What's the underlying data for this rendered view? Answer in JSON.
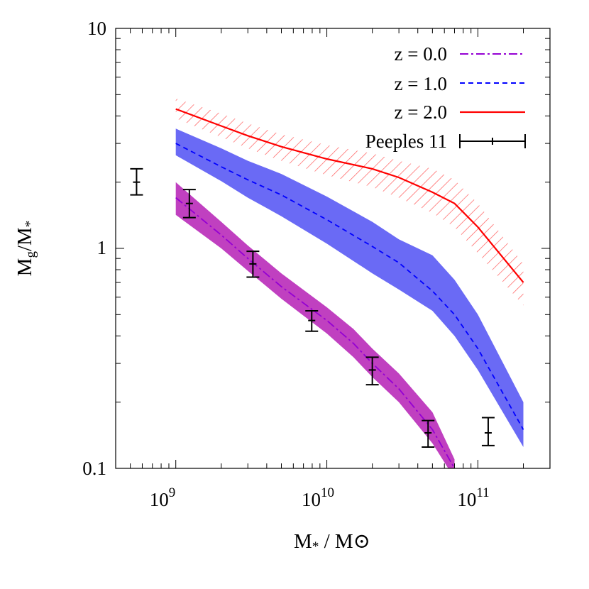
{
  "chart_data": {
    "type": "line",
    "xscale": "log",
    "yscale": "log",
    "xlim": [
      400000000,
      300000000000
    ],
    "ylim": [
      0.1,
      10
    ],
    "xlabel": {
      "main": "M",
      "sub": "*",
      "rest": " / M",
      "symbol": "⊙"
    },
    "ylabel": {
      "num": "M",
      "num_sub": "g",
      "slash": "/M",
      "den_sub": "*"
    },
    "x_ticks": [
      {
        "base": "10",
        "exp": "9",
        "value": 1000000000
      },
      {
        "base": "10",
        "exp": "10",
        "value": 10000000000
      },
      {
        "base": "10",
        "exp": "11",
        "value": 100000000000
      }
    ],
    "y_ticks": [
      {
        "label": "0.1",
        "value": 0.1
      },
      {
        "label": "1",
        "value": 1
      },
      {
        "label": "10",
        "value": 10
      }
    ],
    "series": [
      {
        "name": "z = 0.0",
        "color": "#9400d3",
        "band_color": "#c040c0",
        "style": "dash-dot",
        "band": "solid",
        "points": [
          [
            1000000000,
            1.7
          ],
          [
            2000000000,
            1.15
          ],
          [
            3000000000,
            0.9
          ],
          [
            5000000000,
            0.67
          ],
          [
            10000000000,
            0.47
          ],
          [
            15000000000,
            0.37
          ],
          [
            20000000000,
            0.3
          ],
          [
            30000000000,
            0.23
          ],
          [
            50000000000,
            0.15
          ],
          [
            70000000000,
            0.1
          ]
        ],
        "upper": [
          [
            1000000000,
            2.0
          ],
          [
            2000000000,
            1.32
          ],
          [
            3000000000,
            1.03
          ],
          [
            5000000000,
            0.77
          ],
          [
            10000000000,
            0.54
          ],
          [
            15000000000,
            0.43
          ],
          [
            20000000000,
            0.35
          ],
          [
            30000000000,
            0.27
          ],
          [
            50000000000,
            0.18
          ],
          [
            70000000000,
            0.11
          ]
        ],
        "lower": [
          [
            1000000000,
            1.42
          ],
          [
            2000000000,
            1.0
          ],
          [
            3000000000,
            0.79
          ],
          [
            5000000000,
            0.59
          ],
          [
            10000000000,
            0.41
          ],
          [
            15000000000,
            0.32
          ],
          [
            20000000000,
            0.26
          ],
          [
            30000000000,
            0.2
          ],
          [
            50000000000,
            0.13
          ],
          [
            70000000000,
            0.09
          ]
        ]
      },
      {
        "name": "z = 1.0",
        "color": "#0000ff",
        "band_color": "#6a6af5",
        "style": "dashed",
        "band": "solid",
        "points": [
          [
            1000000000,
            3.0
          ],
          [
            2000000000,
            2.35
          ],
          [
            3000000000,
            2.05
          ],
          [
            5000000000,
            1.75
          ],
          [
            10000000000,
            1.35
          ],
          [
            20000000000,
            1.02
          ],
          [
            30000000000,
            0.86
          ],
          [
            50000000000,
            0.64
          ],
          [
            70000000000,
            0.5
          ],
          [
            100000000000,
            0.35
          ],
          [
            200000000000,
            0.15
          ]
        ],
        "upper": [
          [
            1000000000,
            3.5
          ],
          [
            2000000000,
            2.85
          ],
          [
            3000000000,
            2.5
          ],
          [
            5000000000,
            2.18
          ],
          [
            10000000000,
            1.72
          ],
          [
            20000000000,
            1.32
          ],
          [
            30000000000,
            1.1
          ],
          [
            50000000000,
            0.93
          ],
          [
            70000000000,
            0.72
          ],
          [
            100000000000,
            0.5
          ],
          [
            200000000000,
            0.2
          ]
        ],
        "lower": [
          [
            1000000000,
            2.65
          ],
          [
            2000000000,
            2.02
          ],
          [
            3000000000,
            1.7
          ],
          [
            5000000000,
            1.4
          ],
          [
            10000000000,
            1.05
          ],
          [
            20000000000,
            0.77
          ],
          [
            30000000000,
            0.65
          ],
          [
            50000000000,
            0.52
          ],
          [
            70000000000,
            0.4
          ],
          [
            100000000000,
            0.28
          ],
          [
            200000000000,
            0.125
          ]
        ]
      },
      {
        "name": "z = 2.0",
        "color": "#ff0000",
        "band_color": "#ff5a5a",
        "style": "solid",
        "band": "hatched",
        "points": [
          [
            1000000000,
            4.3
          ],
          [
            2000000000,
            3.6
          ],
          [
            3000000000,
            3.25
          ],
          [
            5000000000,
            2.9
          ],
          [
            10000000000,
            2.55
          ],
          [
            20000000000,
            2.3
          ],
          [
            30000000000,
            2.1
          ],
          [
            50000000000,
            1.8
          ],
          [
            70000000000,
            1.6
          ],
          [
            100000000000,
            1.25
          ],
          [
            200000000000,
            0.7
          ]
        ],
        "upper": [
          [
            1000000000,
            4.8
          ],
          [
            2000000000,
            4.1
          ],
          [
            3000000000,
            3.7
          ],
          [
            5000000000,
            3.3
          ],
          [
            10000000000,
            2.95
          ],
          [
            20000000000,
            2.7
          ],
          [
            30000000000,
            2.5
          ],
          [
            50000000000,
            2.3
          ],
          [
            70000000000,
            2.05
          ],
          [
            100000000000,
            1.6
          ],
          [
            200000000000,
            0.85
          ]
        ],
        "lower": [
          [
            1000000000,
            3.9
          ],
          [
            2000000000,
            3.2
          ],
          [
            3000000000,
            2.85
          ],
          [
            5000000000,
            2.5
          ],
          [
            10000000000,
            2.15
          ],
          [
            20000000000,
            1.9
          ],
          [
            30000000000,
            1.7
          ],
          [
            50000000000,
            1.45
          ],
          [
            70000000000,
            1.25
          ],
          [
            100000000000,
            0.95
          ],
          [
            200000000000,
            0.55
          ]
        ]
      }
    ],
    "observations": {
      "name": "Peeples 11",
      "color": "#000000",
      "points": [
        {
          "x": 550000000,
          "y": 2.0,
          "ylo": 1.75,
          "yhi": 2.3,
          "xlo": 500000000,
          "xhi": 600000000
        },
        {
          "x": 1230000000,
          "y": 1.6,
          "ylo": 1.38,
          "yhi": 1.85,
          "xlo": 1150000000,
          "xhi": 1320000000
        },
        {
          "x": 3240000000,
          "y": 0.85,
          "ylo": 0.74,
          "yhi": 0.97,
          "xlo": 3020000000,
          "xhi": 3470000000
        },
        {
          "x": 7940000000,
          "y": 0.47,
          "ylo": 0.42,
          "yhi": 0.52,
          "xlo": 7410000000,
          "xhi": 8510000000
        },
        {
          "x": 20000000000,
          "y": 0.28,
          "ylo": 0.24,
          "yhi": 0.32,
          "xlo": 18600000000,
          "xhi": 21400000000
        },
        {
          "x": 46800000000,
          "y": 0.145,
          "ylo": 0.125,
          "yhi": 0.165,
          "xlo": 43600000000,
          "xhi": 50100000000
        },
        {
          "x": 117000000000,
          "y": 0.145,
          "ylo": 0.127,
          "yhi": 0.17,
          "xlo": 109000000000,
          "xhi": 126000000000
        }
      ]
    },
    "legend": {
      "position": "top-right",
      "entries": [
        "z = 0.0",
        "z = 1.0",
        "z = 2.0",
        "Peeples 11"
      ]
    }
  }
}
